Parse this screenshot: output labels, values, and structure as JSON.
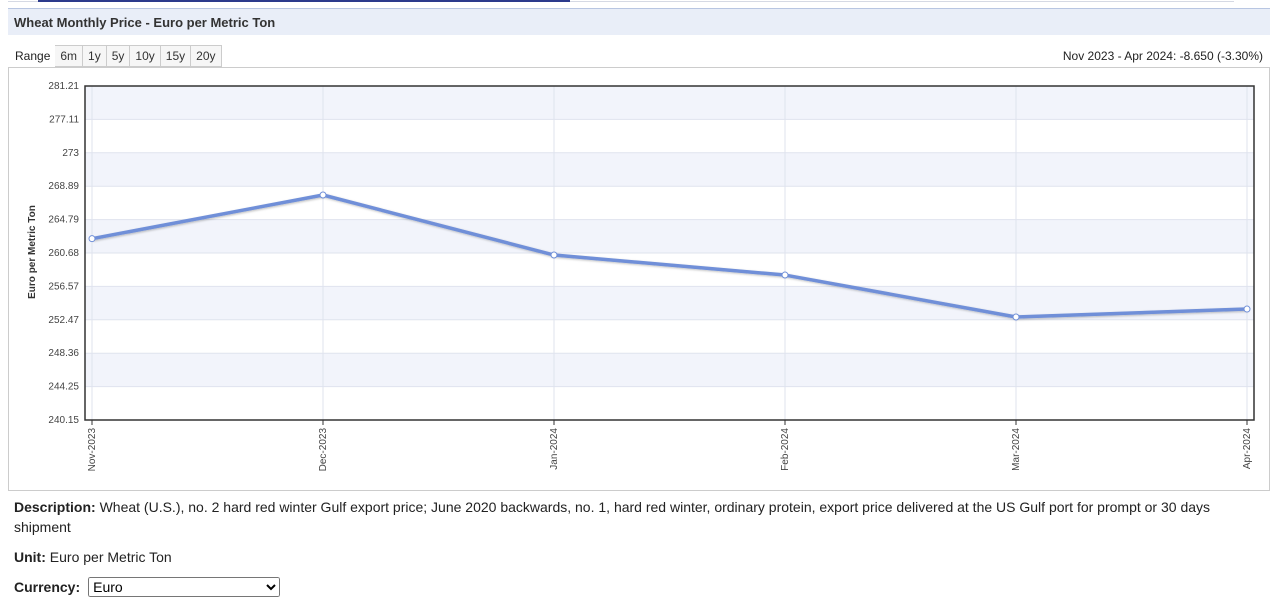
{
  "header": {
    "title": "Wheat Monthly Price - Euro per Metric Ton"
  },
  "range": {
    "label": "Range",
    "options": [
      "6m",
      "1y",
      "5y",
      "10y",
      "15y",
      "20y"
    ]
  },
  "change": "Nov 2023 - Apr 2024: -8.650 (-3.30%)",
  "chart_data": {
    "type": "line",
    "y_label": "Euro per Metric Ton",
    "categories": [
      "Nov-2023",
      "Dec-2023",
      "Jan-2024",
      "Feb-2024",
      "Mar-2024",
      "Apr-2024"
    ],
    "values": [
      262.44,
      267.81,
      260.43,
      257.97,
      252.81,
      253.79
    ],
    "color": "#6f8fd8",
    "ylim": [
      240.15,
      281.21
    ],
    "yticks": [
      240.15,
      244.25,
      248.36,
      252.47,
      256.57,
      260.68,
      264.79,
      268.89,
      273,
      277.11,
      281.21
    ],
    "grid": true
  },
  "description": {
    "label": "Description:",
    "text": "Wheat (U.S.), no. 2 hard red winter Gulf export price; June 2020 backwards, no. 1, hard red winter, ordinary protein, export price delivered at the US Gulf port for prompt or 30 days shipment"
  },
  "unit": {
    "label": "Unit:",
    "text": "Euro per Metric Ton"
  },
  "currency": {
    "label": "Currency:",
    "selected": "Euro"
  }
}
